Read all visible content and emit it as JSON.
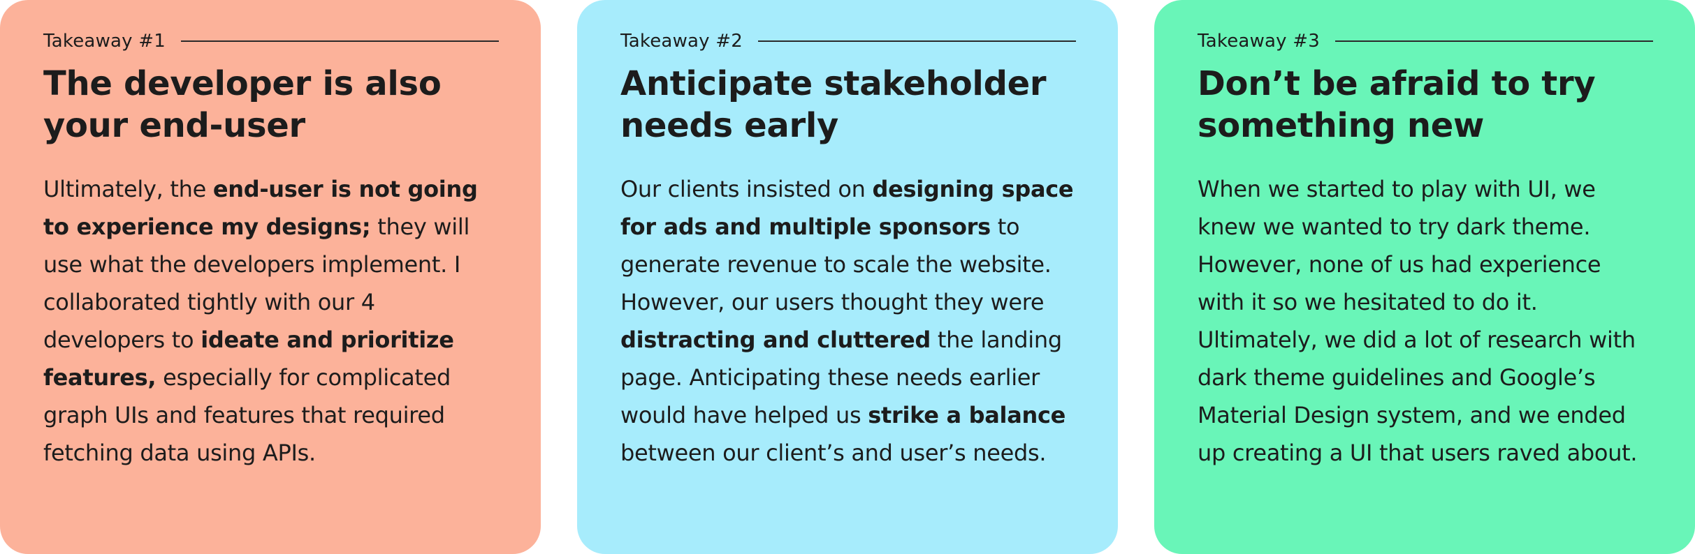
{
  "colors": {
    "card1_bg": "#fcb29a",
    "card2_bg": "#a7ecfc",
    "card3_bg": "#69f5b8",
    "text": "#1c1c1c"
  },
  "cards": [
    {
      "label": "Takeaway #1",
      "title": "The developer is also your end-user",
      "body": [
        {
          "t": "Ultimately, the ",
          "b": false
        },
        {
          "t": "end-user is not going to experience my designs;",
          "b": true
        },
        {
          "t": " they will use what the developers implement. I collaborated tightly with our 4 developers to ",
          "b": false
        },
        {
          "t": "ideate and prioritize features,",
          "b": true
        },
        {
          "t": " especially for complicated graph UIs and features that required fetching data using APIs.",
          "b": false
        }
      ]
    },
    {
      "label": "Takeaway #2",
      "title": "Anticipate stakeholder needs early",
      "body": [
        {
          "t": "Our clients insisted on ",
          "b": false
        },
        {
          "t": "designing space for ads and multiple sponsors",
          "b": true
        },
        {
          "t": " to generate revenue to scale the website. However, our users thought they were ",
          "b": false
        },
        {
          "t": "distracting and cluttered",
          "b": true
        },
        {
          "t": " the landing page. Anticipating these needs earlier would have helped us ",
          "b": false
        },
        {
          "t": "strike a balance",
          "b": true
        },
        {
          "t": " between our client’s and user’s needs.",
          "b": false
        }
      ]
    },
    {
      "label": "Takeaway #3",
      "title": "Don’t be afraid to try something new",
      "body": [
        {
          "t": "When we started to play with UI, we knew we wanted to try dark theme. However, none of us had experience with it so we hesitated to do it. Ultimately, we did a lot of research with dark theme guidelines and Google’s Material Design system, and we ended up creating a UI that users raved about.",
          "b": false
        }
      ]
    }
  ]
}
